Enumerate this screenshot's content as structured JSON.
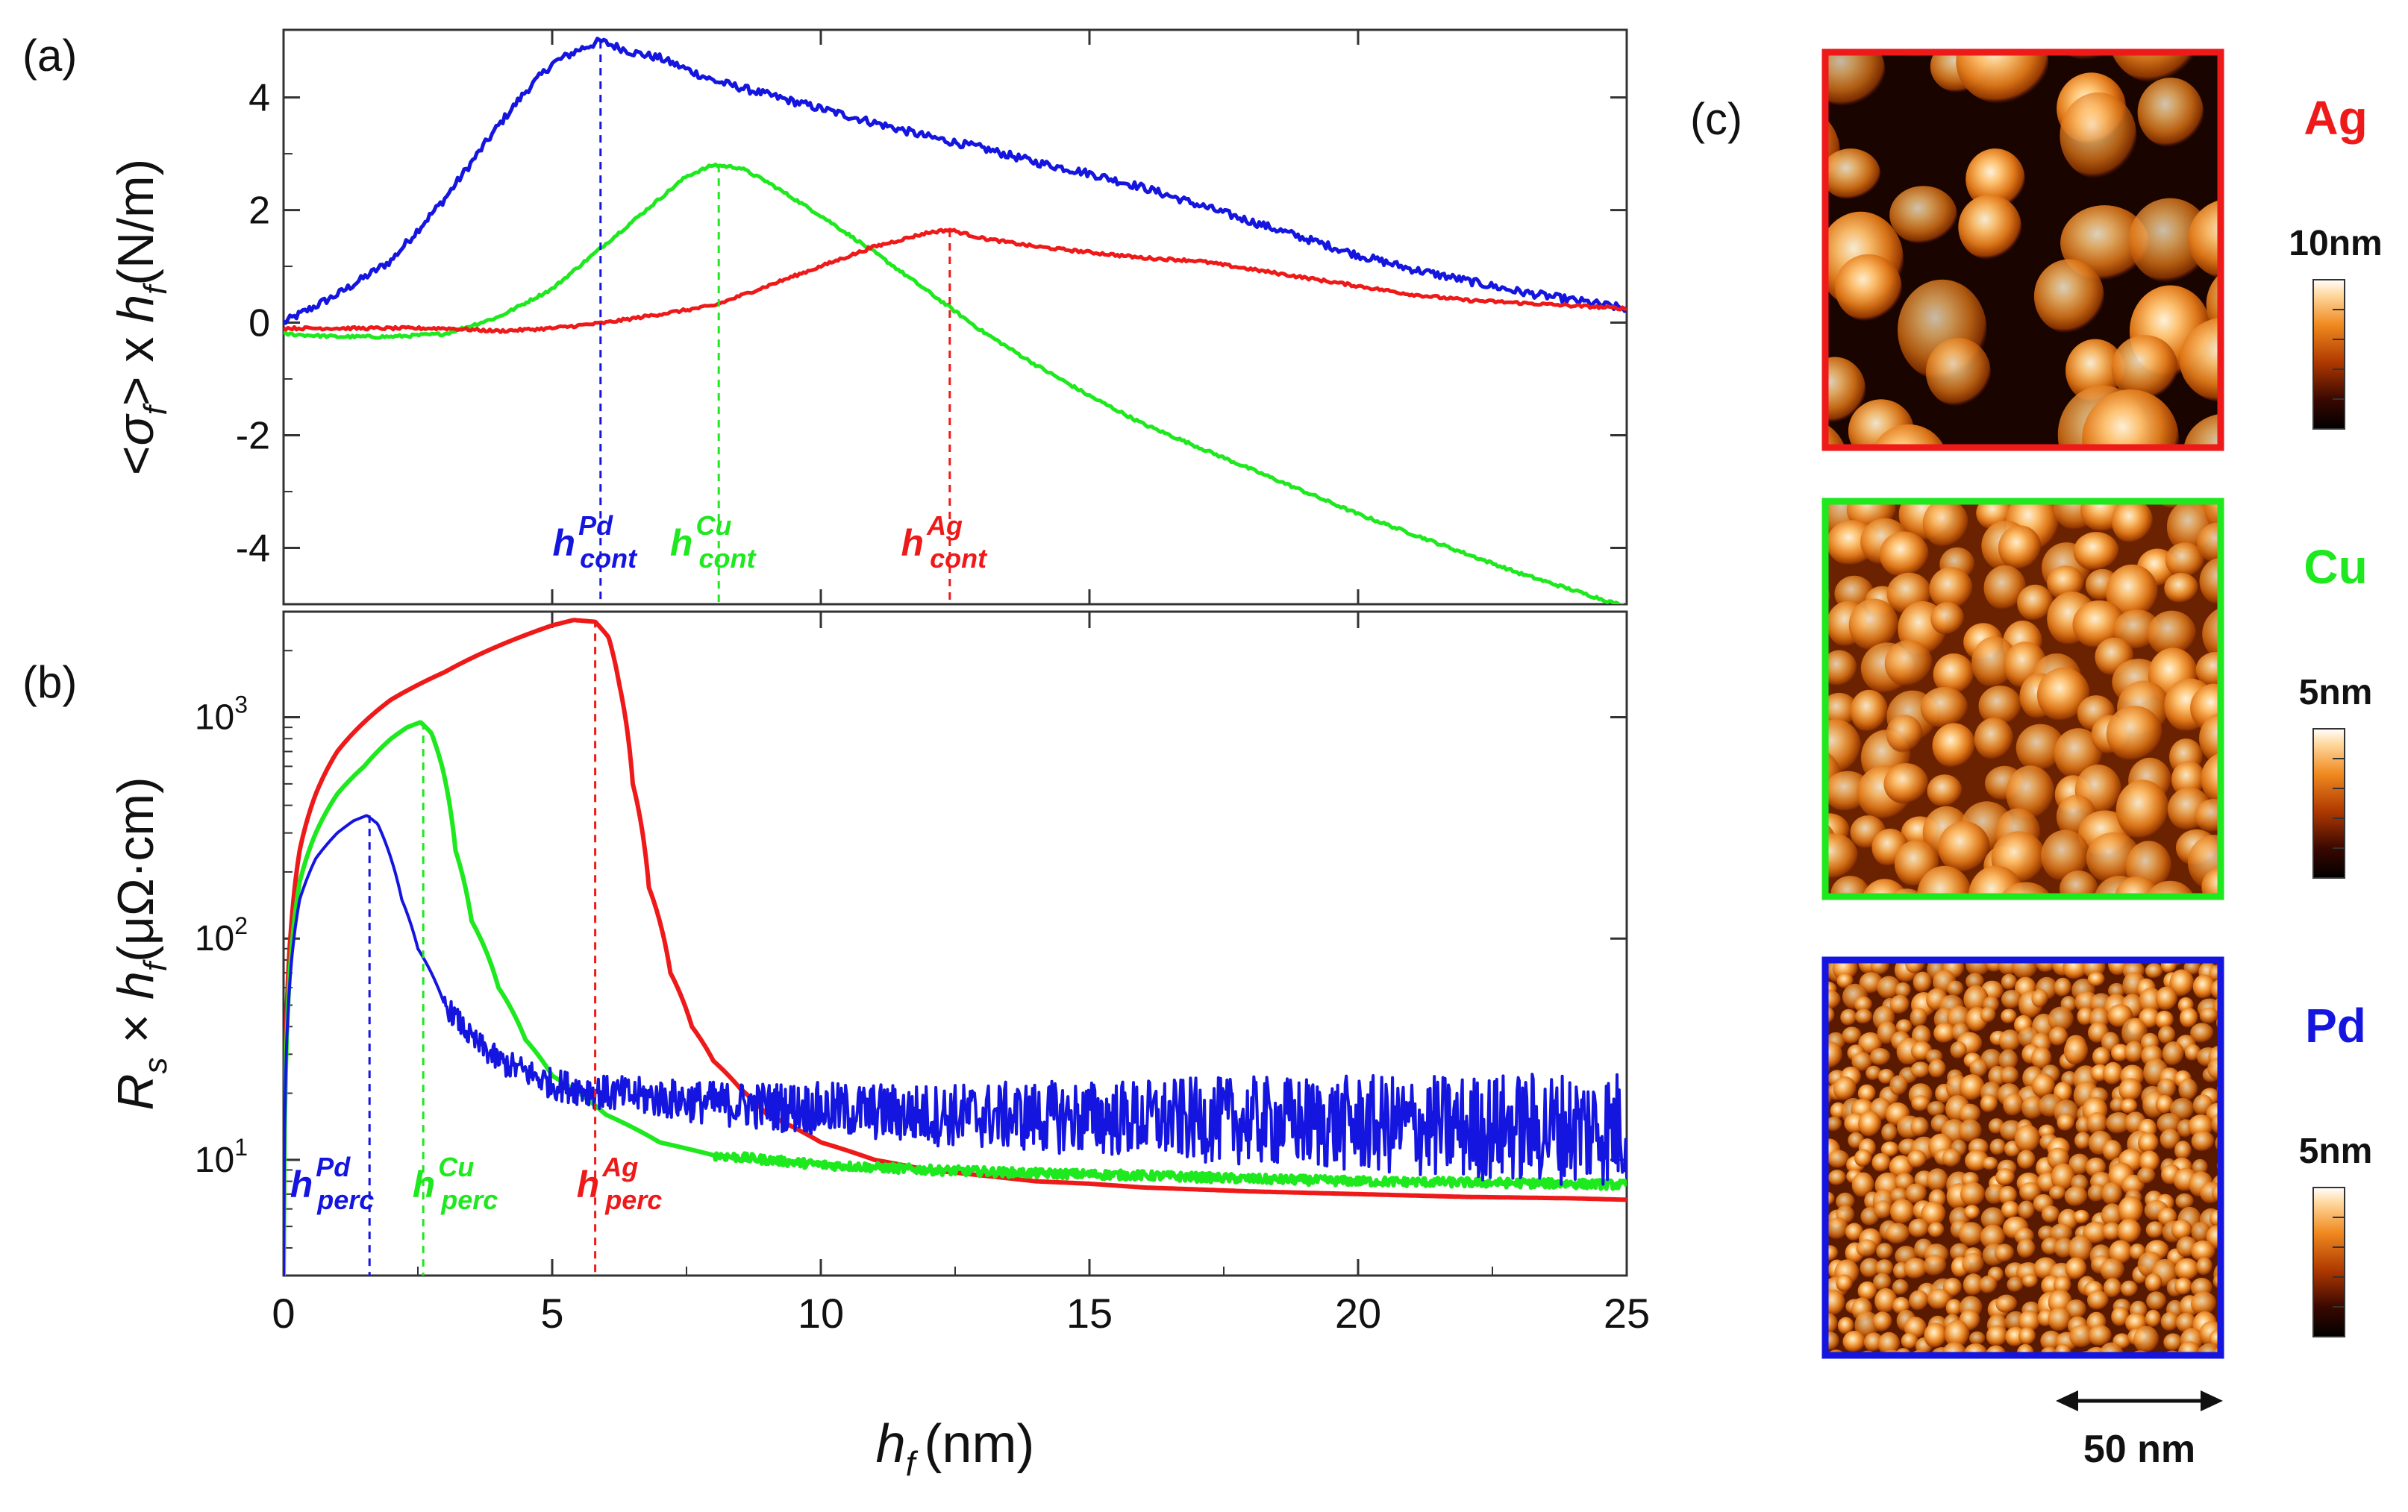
{
  "panel_labels": {
    "a": "(a)",
    "b": "(b)",
    "c": "(c)"
  },
  "colors": {
    "Pd": "#1515e0",
    "Cu": "#1ee81e",
    "Ag": "#ee1a1a",
    "axis": "#333333"
  },
  "chart_data": [
    {
      "id": "a",
      "type": "line",
      "ylabel": "<σ_f> x h_f (N/m)",
      "ylabel_parts": {
        "lt": "<",
        "sym": "σ",
        "sub1": "f",
        "mid": "> x ",
        "h": "h",
        "sub2": "f",
        "unit": "(N/m)"
      },
      "xlim": [
        0,
        25
      ],
      "ylim": [
        -5,
        5.2
      ],
      "yticks": [
        4,
        2,
        0,
        -2,
        -4
      ],
      "ytick_labels": [
        "4",
        "2",
        "0",
        "-2",
        "-4"
      ],
      "series": [
        {
          "name": "Pd",
          "x": [
            0,
            1,
            2,
            3,
            4,
            4.5,
            5,
            5.5,
            5.9,
            6.5,
            7,
            8,
            9,
            10,
            11,
            12,
            13,
            14,
            15,
            16,
            17,
            18,
            19,
            20,
            21,
            22,
            23,
            24,
            25
          ],
          "values": [
            0,
            0.5,
            1.1,
            2.2,
            3.5,
            4.1,
            4.6,
            4.85,
            5.0,
            4.8,
            4.7,
            4.3,
            4.05,
            3.8,
            3.55,
            3.3,
            3.1,
            2.85,
            2.65,
            2.4,
            2.1,
            1.8,
            1.5,
            1.2,
            0.95,
            0.75,
            0.55,
            0.4,
            0.25
          ]
        },
        {
          "name": "Cu",
          "x": [
            0,
            1,
            2,
            3,
            3.5,
            4,
            5,
            6,
            7,
            7.5,
            8,
            8.5,
            9,
            10,
            11,
            12,
            13,
            14,
            15,
            16,
            17,
            18,
            19,
            20,
            21,
            22,
            23,
            24,
            25
          ],
          "values": [
            -0.2,
            -0.25,
            -0.25,
            -0.2,
            -0.05,
            0.1,
            0.6,
            1.4,
            2.2,
            2.6,
            2.8,
            2.75,
            2.5,
            1.9,
            1.25,
            0.55,
            -0.15,
            -0.75,
            -1.3,
            -1.8,
            -2.2,
            -2.6,
            -3.0,
            -3.4,
            -3.75,
            -4.1,
            -4.45,
            -4.75,
            -5.05
          ]
        },
        {
          "name": "Ag",
          "x": [
            0,
            1,
            2,
            3,
            4,
            5,
            6,
            7,
            8,
            9,
            10,
            11,
            12,
            12.4,
            13,
            14,
            15,
            16,
            17,
            18,
            19,
            20,
            21,
            22,
            23,
            24,
            25
          ],
          "values": [
            -0.1,
            -0.1,
            -0.1,
            -0.1,
            -0.15,
            -0.1,
            0,
            0.15,
            0.3,
            0.65,
            1.0,
            1.35,
            1.6,
            1.65,
            1.5,
            1.35,
            1.25,
            1.15,
            1.1,
            0.95,
            0.8,
            0.65,
            0.5,
            0.4,
            0.35,
            0.3,
            0.25
          ]
        }
      ],
      "markers": [
        {
          "name": "Pd",
          "x": 5.9,
          "y_top": 5.0,
          "label_h": "h",
          "label_sup": "Pd",
          "label_sub": "cont"
        },
        {
          "name": "Cu",
          "x": 8.1,
          "y_top": 2.8,
          "label_h": "h",
          "label_sup": "Cu",
          "label_sub": "cont"
        },
        {
          "name": "Ag",
          "x": 12.4,
          "y_top": 1.65,
          "label_h": "h",
          "label_sup": "Ag",
          "label_sub": "cont"
        }
      ]
    },
    {
      "id": "b",
      "type": "line",
      "yscale": "log",
      "ylabel": "R_s × h_f (μΩ·cm)",
      "ylabel_parts": {
        "R": "R",
        "sub1": "s",
        "mid": " × ",
        "h": "h",
        "sub2": "f",
        "unit": "(μΩ·cm)"
      },
      "xlabel": "h_f (nm)",
      "xlabel_parts": {
        "h": "h",
        "sub": "f",
        "unit": "(nm)"
      },
      "xlim": [
        0,
        25
      ],
      "ylim": [
        3,
        3000
      ],
      "xticks": [
        0,
        5,
        10,
        15,
        20,
        25
      ],
      "xtick_labels": [
        "0",
        "5",
        "10",
        "15",
        "20",
        "25"
      ],
      "yticks": [
        10,
        100,
        1000
      ],
      "ytick_labels": [
        {
          "base": "10",
          "exp": "1"
        },
        {
          "base": "10",
          "exp": "2"
        },
        {
          "base": "10",
          "exp": "3"
        }
      ],
      "series": [
        {
          "name": "Ag",
          "x": [
            0,
            0.05,
            0.15,
            0.3,
            0.6,
            1,
            1.5,
            2,
            3,
            4,
            5,
            5.4,
            5.8,
            6.05,
            6.25,
            6.5,
            6.8,
            7.2,
            7.6,
            8,
            8.5,
            9,
            10,
            11,
            12,
            13,
            14,
            15,
            16,
            18,
            20,
            22,
            24,
            25
          ],
          "values": [
            3,
            40,
            120,
            250,
            450,
            700,
            950,
            1200,
            1600,
            2100,
            2600,
            2750,
            2700,
            2300,
            1400,
            500,
            170,
            70,
            40,
            28,
            21,
            16,
            12,
            10,
            9,
            8.5,
            8,
            7.8,
            7.5,
            7.2,
            7,
            6.8,
            6.7,
            6.6
          ]
        },
        {
          "name": "Cu",
          "x": [
            0,
            0.05,
            0.15,
            0.3,
            0.6,
            1,
            1.5,
            2,
            2.3,
            2.55,
            2.75,
            2.95,
            3.2,
            3.5,
            4,
            4.5,
            5,
            6,
            7,
            8,
            9,
            10,
            12,
            14,
            16,
            18,
            20,
            22,
            24,
            25
          ],
          "values": [
            3,
            30,
            90,
            180,
            300,
            450,
            600,
            800,
            900,
            950,
            850,
            600,
            250,
            120,
            60,
            35,
            24,
            16,
            12,
            10.5,
            10,
            9.5,
            9,
            8.7,
            8.5,
            8.2,
            8,
            7.9,
            7.8,
            7.7
          ]
        },
        {
          "name": "Pd",
          "x": [
            0,
            0.05,
            0.15,
            0.3,
            0.6,
            1,
            1.3,
            1.55,
            1.75,
            1.95,
            2.2,
            2.5,
            3,
            3.5,
            4,
            5,
            6,
            8,
            10,
            12,
            15,
            18,
            20,
            22,
            24,
            25
          ],
          "values": [
            3,
            30,
            80,
            150,
            230,
            300,
            340,
            360,
            330,
            250,
            150,
            90,
            50,
            35,
            28,
            22,
            20,
            18,
            17,
            16,
            15.5,
            15,
            14.5,
            14,
            14,
            14
          ]
        }
      ],
      "markers": [
        {
          "name": "Pd",
          "x": 1.6,
          "y_top": 360,
          "label_h": "h",
          "label_sup": "Pd",
          "label_sub": "perc"
        },
        {
          "name": "Cu",
          "x": 2.6,
          "y_top": 950,
          "label_h": "h",
          "label_sup": "Cu",
          "label_sub": "perc"
        },
        {
          "name": "Ag",
          "x": 5.8,
          "y_top": 2750,
          "label_h": "h",
          "label_sup": "Ag",
          "label_sub": "perc"
        }
      ]
    }
  ],
  "afm_panels": [
    {
      "name": "Ag",
      "label": "Ag",
      "scale": "10nm",
      "color": "#ee1a1a",
      "grain": "coarse"
    },
    {
      "name": "Cu",
      "label": "Cu",
      "scale": "5nm",
      "color": "#1ee81e",
      "grain": "medium"
    },
    {
      "name": "Pd",
      "label": "Pd",
      "scale": "5nm",
      "color": "#1515e0",
      "grain": "fine"
    }
  ],
  "scale_bar": {
    "label": "50 nm"
  }
}
